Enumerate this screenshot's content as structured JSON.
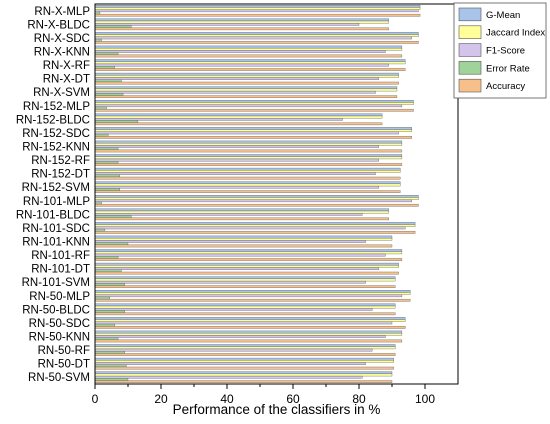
{
  "chart_data": {
    "type": "bar",
    "orientation": "horizontal",
    "title": "",
    "xlabel": "Performance of the classifiers in %",
    "ylabel": "",
    "xlim": [
      0,
      110
    ],
    "xticks": [
      0,
      20,
      40,
      60,
      80,
      100
    ],
    "grid": false,
    "legend_position": "top-right",
    "categories": [
      "RN-X-MLP",
      "RN-X-BLDC",
      "RN-X-SDC",
      "RN-X-KNN",
      "RN-X-RF",
      "RN-X-DT",
      "RN-X-SVM",
      "RN-152-MLP",
      "RN-152-BLDC",
      "RN-152-SDC",
      "RN-152-KNN",
      "RN-152-RF",
      "RN-152-DT",
      "RN-152-SVM",
      "RN-101-MLP",
      "RN-101-BLDC",
      "RN-101-SDC",
      "RN-101-KNN",
      "RN-101-RF",
      "RN-101-DT",
      "RN-101-SVM",
      "RN-50-MLP",
      "RN-50-BLDC",
      "RN-50-SDC",
      "RN-50-KNN",
      "RN-50-RF",
      "RN-50-DT",
      "RN-50-SVM"
    ],
    "series": [
      {
        "name": "G-Mean",
        "color": "#a9c4eb",
        "values": [
          98.5,
          89,
          98,
          93,
          94,
          92,
          91.5,
          96.5,
          87,
          96,
          93,
          93,
          92.5,
          92.5,
          98,
          89,
          97,
          90,
          93,
          92,
          91,
          95.5,
          91,
          94,
          93,
          91,
          90.5,
          90
        ]
      },
      {
        "name": "Jaccard Index",
        "color": "#ffff99",
        "values": [
          98.5,
          89,
          98,
          93,
          94,
          92,
          91.5,
          96.5,
          87,
          96,
          93,
          93,
          92.5,
          92.5,
          98,
          89,
          97,
          90,
          93,
          92,
          91,
          95.5,
          91,
          94,
          93,
          91,
          90.5,
          90
        ]
      },
      {
        "name": "F1-Score",
        "color": "#d2c4ea",
        "values": [
          98,
          80,
          96,
          88,
          89,
          86,
          85,
          93,
          75,
          92,
          86,
          86,
          85,
          86,
          96,
          81,
          94,
          82,
          88,
          86,
          82,
          93,
          84,
          90,
          88,
          84,
          82,
          81
        ]
      },
      {
        "name": "Error Rate",
        "color": "#9fd39a",
        "values": [
          1.5,
          11,
          2,
          7,
          6,
          8,
          8.5,
          3.5,
          13,
          4,
          7,
          7,
          7.5,
          7.5,
          2,
          11,
          3,
          10,
          7,
          8,
          9,
          4.5,
          9,
          6,
          7,
          9,
          9.5,
          10
        ]
      },
      {
        "name": "Accuracy",
        "color": "#f7c08a",
        "values": [
          98.5,
          89,
          98,
          93,
          94,
          92,
          91.5,
          96.5,
          87,
          96,
          93,
          93,
          92.5,
          92.5,
          98,
          89,
          97,
          90,
          93,
          92,
          91,
          95.5,
          91,
          94,
          93,
          91,
          90.5,
          90
        ]
      }
    ]
  }
}
